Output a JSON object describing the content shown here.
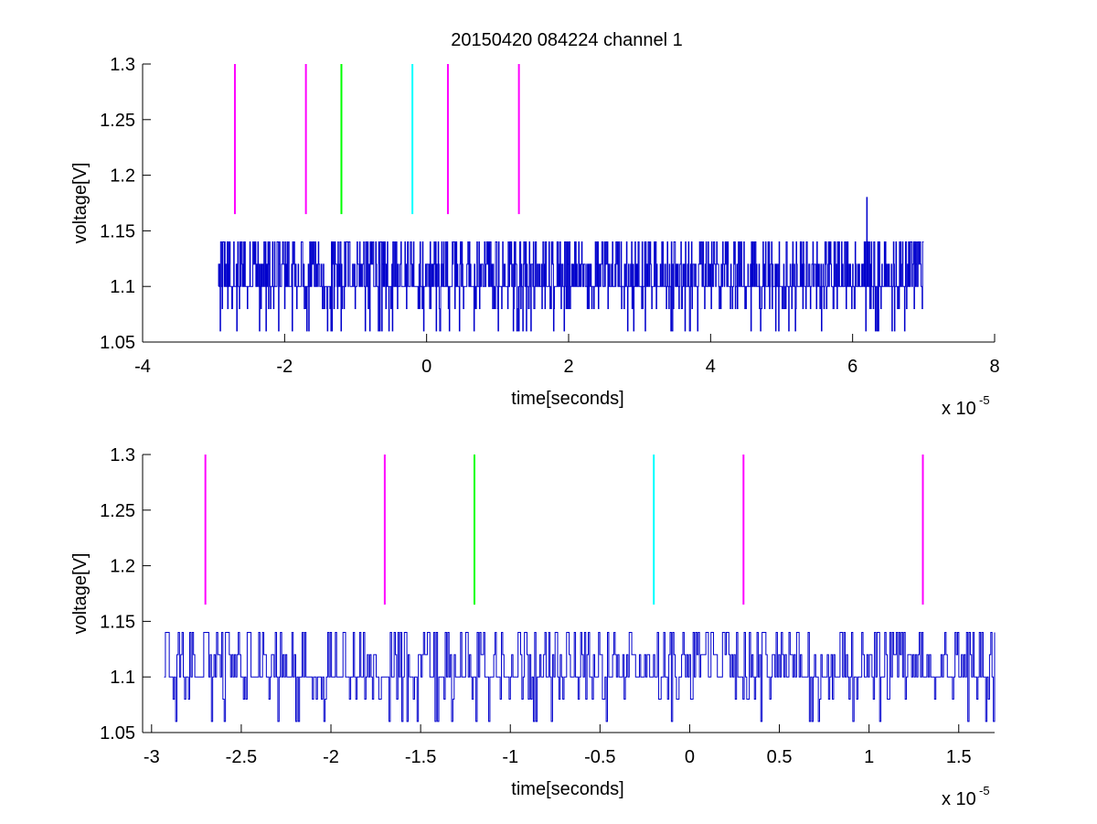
{
  "figure": {
    "title": "20150420 084224 channel 1"
  },
  "chart_data": [
    {
      "type": "line",
      "title": "20150420 084224 channel 1",
      "xlabel": "time[seconds]",
      "ylabel": "voltage[V]",
      "x_exponent_label": "x 10",
      "x_exponent": "-5",
      "xlim": [
        -4,
        8
      ],
      "ylim": [
        1.05,
        1.3
      ],
      "x_ticks": [
        -4,
        -2,
        0,
        2,
        4,
        6,
        8
      ],
      "x_tick_labels": [
        "-4",
        "-2",
        "0",
        "2",
        "4",
        "6",
        "8"
      ],
      "y_ticks": [
        1.05,
        1.1,
        1.15,
        1.2,
        1.25,
        1.3
      ],
      "y_tick_labels": [
        "1.05",
        "1.1",
        "1.15",
        "1.2",
        "1.25",
        "1.3"
      ],
      "grid": false,
      "signal": {
        "color": "#0000cc",
        "x_start": -2.93,
        "x_end": 7.0,
        "levels": [
          1.06,
          1.08,
          1.1,
          1.12,
          1.14
        ],
        "spike": {
          "x": 6.2,
          "y": 1.18
        }
      },
      "markers": [
        {
          "x": -2.7,
          "y_from": 1.165,
          "y_to": 1.3,
          "color": "#ff00ff"
        },
        {
          "x": -1.7,
          "y_from": 1.165,
          "y_to": 1.3,
          "color": "#ff00ff"
        },
        {
          "x": -1.2,
          "y_from": 1.165,
          "y_to": 1.3,
          "color": "#00ff00"
        },
        {
          "x": -0.2,
          "y_from": 1.165,
          "y_to": 1.3,
          "color": "#00ffff"
        },
        {
          "x": 0.3,
          "y_from": 1.165,
          "y_to": 1.3,
          "color": "#ff00ff"
        },
        {
          "x": 1.3,
          "y_from": 1.165,
          "y_to": 1.3,
          "color": "#ff00ff"
        }
      ]
    },
    {
      "type": "line",
      "title": "",
      "xlabel": "time[seconds]",
      "ylabel": "voltage[V]",
      "x_exponent_label": "x 10",
      "x_exponent": "-5",
      "xlim": [
        -3.05,
        1.7
      ],
      "ylim": [
        1.05,
        1.3
      ],
      "x_ticks": [
        -3,
        -2.5,
        -2,
        -1.5,
        -1,
        -0.5,
        0,
        0.5,
        1,
        1.5
      ],
      "x_tick_labels": [
        "-3",
        "-2.5",
        "-2",
        "-1.5",
        "-1",
        "-0.5",
        "0",
        "0.5",
        "1",
        "1.5"
      ],
      "y_ticks": [
        1.05,
        1.1,
        1.15,
        1.2,
        1.25,
        1.3
      ],
      "y_tick_labels": [
        "1.05",
        "1.1",
        "1.15",
        "1.2",
        "1.25",
        "1.3"
      ],
      "grid": false,
      "signal": {
        "color": "#0000cc",
        "x_start": -2.93,
        "x_end": 1.7,
        "levels": [
          1.06,
          1.08,
          1.1,
          1.12,
          1.14
        ]
      },
      "markers": [
        {
          "x": -2.7,
          "y_from": 1.165,
          "y_to": 1.3,
          "color": "#ff00ff"
        },
        {
          "x": -1.7,
          "y_from": 1.165,
          "y_to": 1.3,
          "color": "#ff00ff"
        },
        {
          "x": -1.2,
          "y_from": 1.165,
          "y_to": 1.3,
          "color": "#00ff00"
        },
        {
          "x": -0.2,
          "y_from": 1.165,
          "y_to": 1.3,
          "color": "#00ffff"
        },
        {
          "x": 0.3,
          "y_from": 1.165,
          "y_to": 1.3,
          "color": "#ff00ff"
        },
        {
          "x": 1.3,
          "y_from": 1.165,
          "y_to": 1.3,
          "color": "#ff00ff"
        }
      ]
    }
  ]
}
